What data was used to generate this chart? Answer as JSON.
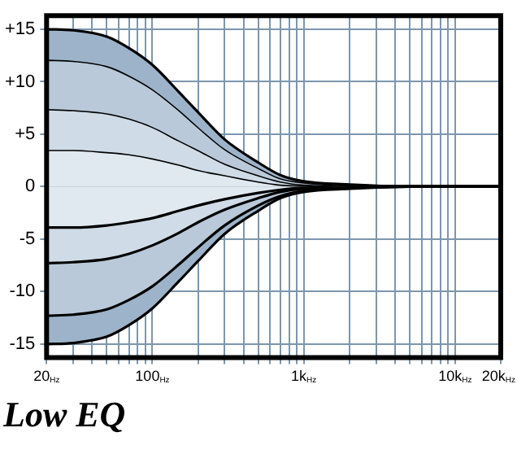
{
  "chart_data": {
    "type": "area",
    "title": "Low EQ",
    "log": "x",
    "grid": true,
    "legend": false,
    "marker": "none",
    "line_style": "solid",
    "xlim": [
      20,
      20000
    ],
    "ylim": [
      -16.3,
      16.3
    ],
    "xticks": [
      {
        "value": 20,
        "label": "20$_{Hz}$"
      },
      {
        "value": 30,
        "label": null
      },
      {
        "value": 40,
        "label": null
      },
      {
        "value": 50,
        "label": null
      },
      {
        "value": 60,
        "label": null
      },
      {
        "value": 70,
        "label": null
      },
      {
        "value": 80,
        "label": null
      },
      {
        "value": 90,
        "label": null
      },
      {
        "value": 100,
        "label": "100$_{Hz}$"
      },
      {
        "value": 200,
        "label": null
      },
      {
        "value": 300,
        "label": null
      },
      {
        "value": 400,
        "label": null
      },
      {
        "value": 500,
        "label": null
      },
      {
        "value": 600,
        "label": null
      },
      {
        "value": 700,
        "label": null
      },
      {
        "value": 800,
        "label": null
      },
      {
        "value": 900,
        "label": null
      },
      {
        "value": 1000,
        "label": "1k$_{Hz}$"
      },
      {
        "value": 2000,
        "label": null
      },
      {
        "value": 3000,
        "label": null
      },
      {
        "value": 4000,
        "label": null
      },
      {
        "value": 5000,
        "label": null
      },
      {
        "value": 6000,
        "label": null
      },
      {
        "value": 7000,
        "label": null
      },
      {
        "value": 8000,
        "label": null
      },
      {
        "value": 9000,
        "label": null
      },
      {
        "value": 10000,
        "label": "10k$_{Hz}$"
      },
      {
        "value": 20000,
        "label": "20k$_{Hz}$"
      }
    ],
    "yticks": [
      {
        "value": 15,
        "label": "+15"
      },
      {
        "value": 10,
        "label": "+10"
      },
      {
        "value": 5,
        "label": "+5"
      },
      0,
      -5,
      -10,
      -15
    ],
    "x": [
      20,
      30,
      50,
      70,
      100,
      150,
      200,
      300,
      500,
      700,
      1000,
      2000,
      5000,
      20000
    ],
    "series": [
      {
        "color": "#9db3c9",
        "values": [
          15,
          14.9,
          14.3,
          13.2,
          11.6,
          9,
          7.1,
          4.5,
          2.3,
          1.1,
          0.5,
          0.2,
          0,
          0
        ]
      },
      {
        "color": "#b9c9d9",
        "values": [
          12.1,
          12,
          11.5,
          10.6,
          9.3,
          7.3,
          5.7,
          3.6,
          1.8,
          0.8,
          0.4,
          0.1,
          0,
          0
        ]
      },
      {
        "color": "#cfdbe6",
        "values": [
          7.4,
          7.3,
          7,
          6.5,
          5.7,
          4.4,
          3.5,
          2.2,
          1.1,
          0.5,
          0.2,
          0.1,
          0,
          0
        ]
      },
      {
        "color": "#e1e9f0",
        "values": [
          3.5,
          3.5,
          3.3,
          3.1,
          2.7,
          2.1,
          1.6,
          1.1,
          0.5,
          0.2,
          0.1,
          0,
          0,
          0
        ]
      },
      {
        "color": "#e1e9f0",
        "values": [
          -3.9,
          -3.9,
          -3.7,
          -3.4,
          -3,
          -2.3,
          -1.8,
          -1.2,
          -0.6,
          -0.3,
          -0.1,
          0,
          0,
          0
        ]
      },
      {
        "color": "#cfdbe6",
        "values": [
          -7.3,
          -7.2,
          -6.9,
          -6.4,
          -5.6,
          -4.4,
          -3.4,
          -2.2,
          -1.1,
          -0.5,
          -0.2,
          -0.1,
          0,
          0
        ]
      },
      {
        "color": "#b9c9d9",
        "values": [
          -12.3,
          -12.2,
          -11.7,
          -10.8,
          -9.5,
          -7.4,
          -5.8,
          -3.7,
          -1.8,
          -0.9,
          -0.4,
          -0.1,
          0,
          0
        ]
      },
      {
        "color": "#9db3c9",
        "values": [
          -15,
          -14.9,
          -14.3,
          -13.2,
          -11.6,
          -9,
          -7.1,
          -4.5,
          -2.3,
          -1.1,
          -0.5,
          -0.2,
          0,
          0
        ]
      }
    ]
  }
}
